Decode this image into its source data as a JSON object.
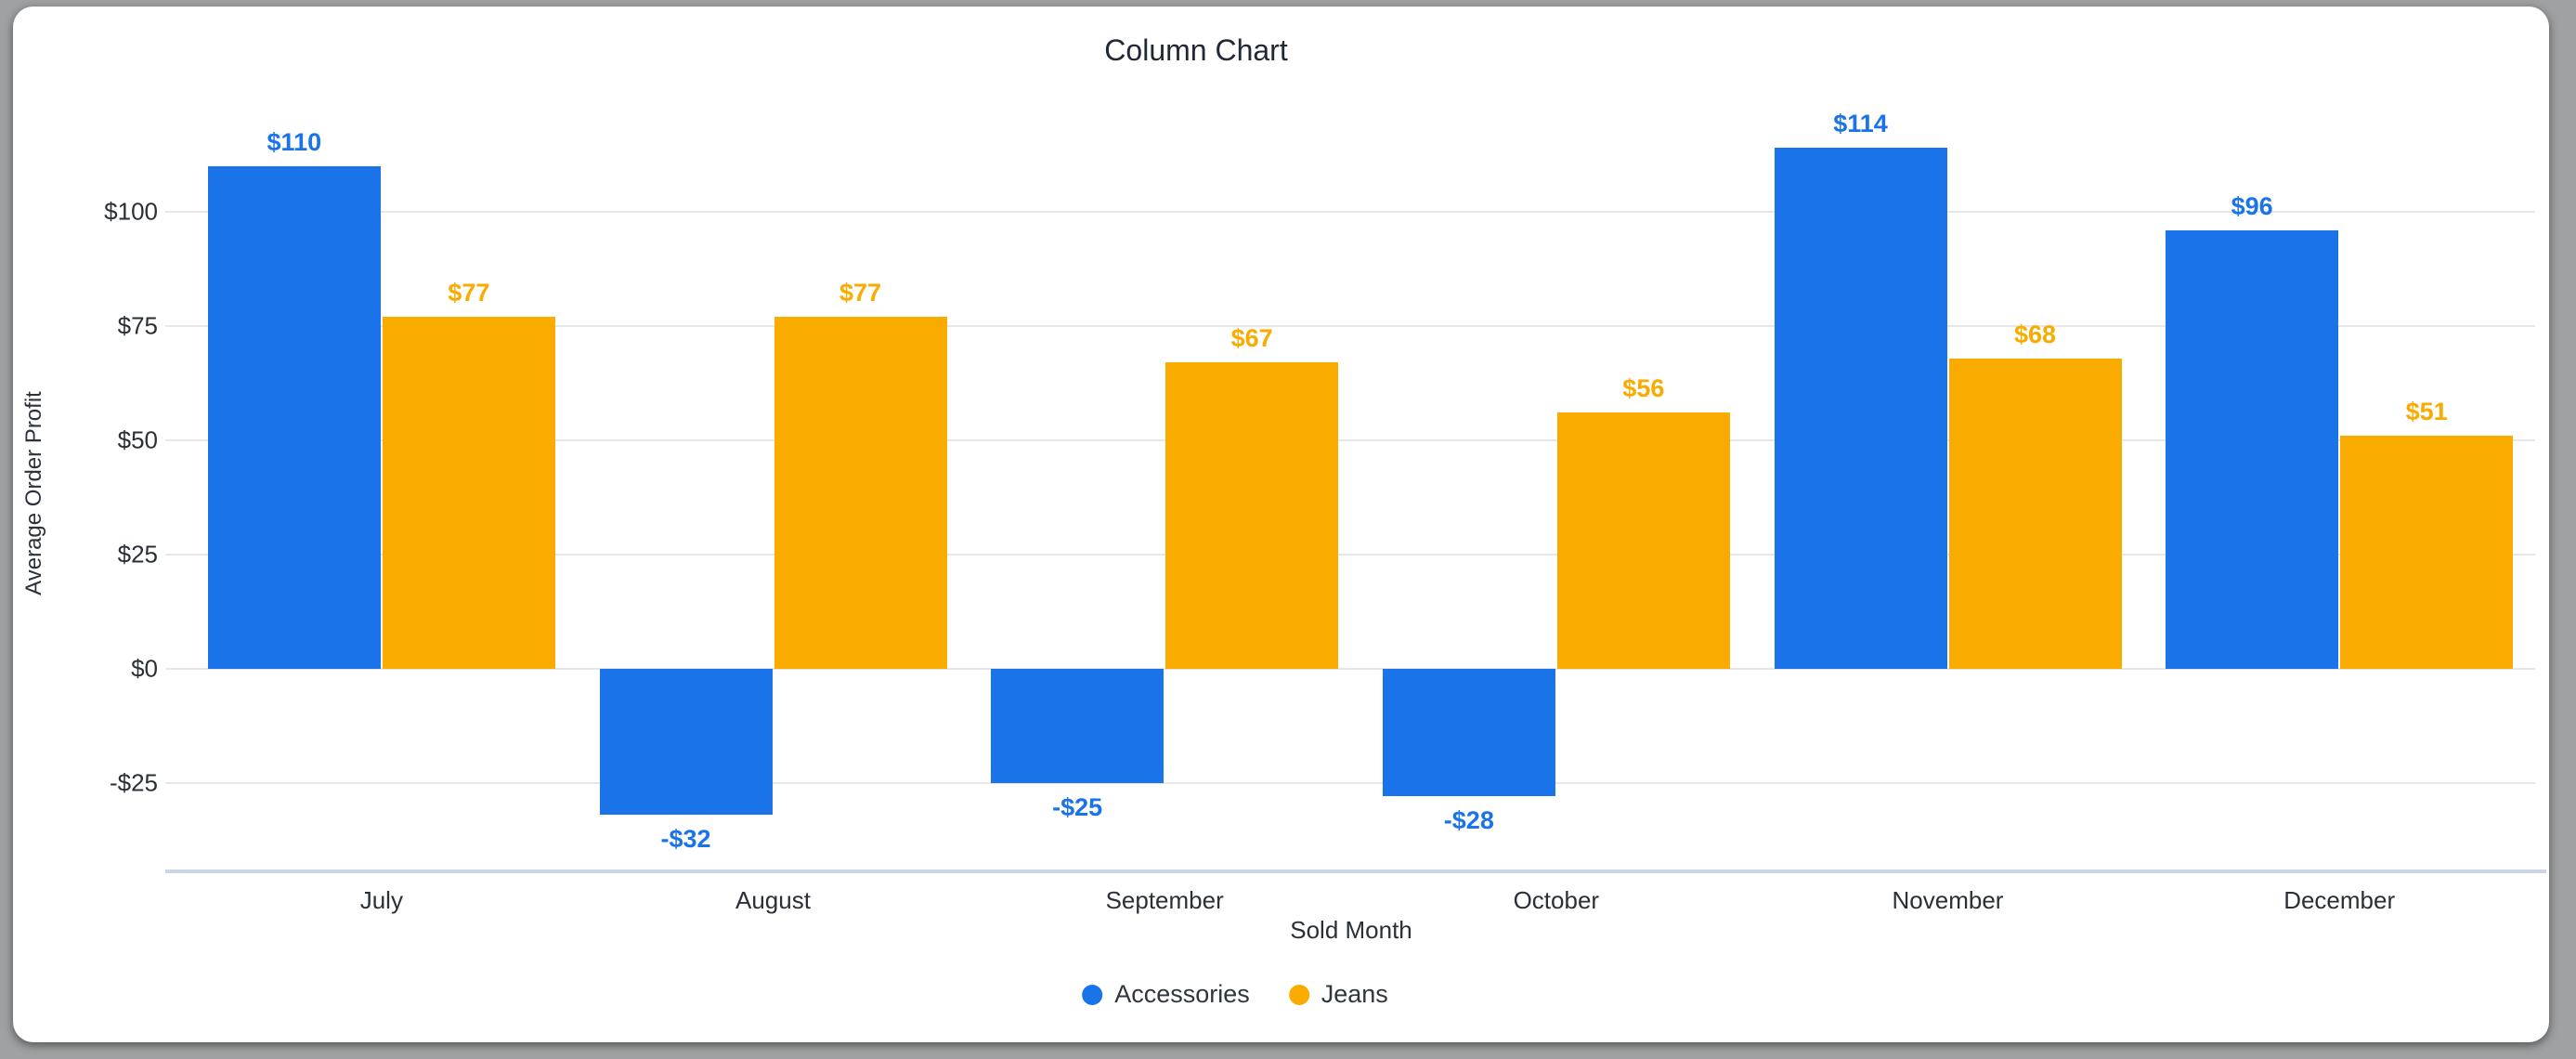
{
  "frame": {
    "background_color": "#9fa1a2",
    "card_color": "#ffffff"
  },
  "chart_data": {
    "type": "bar",
    "title": "Column Chart",
    "xlabel": "Sold Month",
    "ylabel": "Average Order Profit",
    "categories": [
      "July",
      "August",
      "September",
      "October",
      "November",
      "December"
    ],
    "series": [
      {
        "name": "Accessories",
        "color": "#1A73E8",
        "values": [
          110,
          -32,
          -25,
          -28,
          114,
          96
        ],
        "labels": [
          "$110",
          "-$32",
          "-$25",
          "-$28",
          "$114",
          "$96"
        ]
      },
      {
        "name": "Jeans",
        "color": "#F9AB00",
        "values": [
          77,
          77,
          67,
          56,
          68,
          51
        ],
        "labels": [
          "$77",
          "$77",
          "$67",
          "$56",
          "$68",
          "$51"
        ]
      }
    ],
    "y_ticks": [
      100,
      75,
      50,
      25,
      0,
      -25
    ],
    "y_tick_labels": [
      "$100",
      "$75",
      "$50",
      "$25",
      "$0",
      "-$25"
    ],
    "ylim": [
      -44.4,
      121
    ],
    "grid": true,
    "gridline_color": "#e6e7e8",
    "baseline_color": "#ccd5e8",
    "legend_position": "bottom"
  }
}
